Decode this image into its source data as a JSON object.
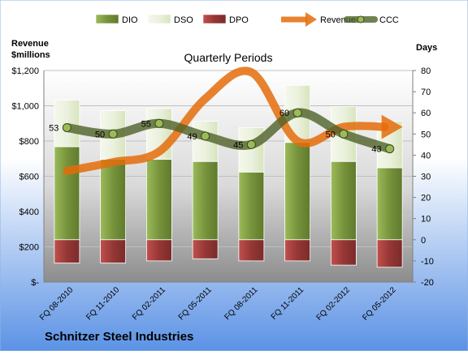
{
  "chart_data": {
    "type": "bar",
    "title": "Quarterly Periods",
    "company": "Schnitzer Steel Industries",
    "left_axis_label_line1": "Revenue",
    "left_axis_label_line2": "$millions",
    "right_axis_label": "Days",
    "categories": [
      "FQ 08-2010",
      "FQ 11-2010",
      "FQ 02-2011",
      "FQ 05-2011",
      "FQ 08-2011",
      "FQ 11-2011",
      "FQ 02-2012",
      "FQ 05-2012"
    ],
    "left_ticks": [
      "$-",
      "$200",
      "$400",
      "$600",
      "$800",
      "$1,000",
      "$1,200"
    ],
    "right_ticks": [
      "-20",
      "-10",
      "0",
      "10",
      "20",
      "30",
      "40",
      "50",
      "60",
      "70",
      "80"
    ],
    "ylim_left": [
      0,
      1200
    ],
    "ylim_right": [
      -20,
      80
    ],
    "series": [
      {
        "name": "DIO",
        "axis": "right",
        "values": [
          44,
          38,
          38,
          37,
          32,
          46,
          37,
          34
        ]
      },
      {
        "name": "DSO",
        "axis": "right",
        "values": [
          22,
          23,
          24,
          19,
          21,
          27,
          26,
          22
        ]
      },
      {
        "name": "DPO",
        "axis": "right",
        "values": [
          -11,
          -11,
          -10,
          -9,
          -10,
          -10,
          -12,
          -13
        ]
      },
      {
        "name": "Revenue",
        "axis": "left",
        "values": [
          630,
          680,
          740,
          1040,
          1190,
          800,
          880,
          880
        ]
      },
      {
        "name": "CCC",
        "axis": "right",
        "values": [
          53,
          50,
          55,
          49,
          45,
          60,
          50,
          43
        ]
      }
    ],
    "ccc_labels": [
      "53",
      "50",
      "55",
      "49",
      "45",
      "60",
      "50",
      "43"
    ],
    "legend": {
      "position": "top",
      "entries": [
        "DIO",
        "DSO",
        "DPO",
        "Revenue",
        "CCC"
      ]
    },
    "grid": true,
    "colors": {
      "dio": "#77933c",
      "dio_light": "#9bbb59",
      "dso": "#ebf1de",
      "dpo": "#953735",
      "revenue": "#e46c0a",
      "ccc": "#4f6228",
      "background_top": "#ffffff",
      "background_bottom": "#5b92e5",
      "plot_top": "#ffffff",
      "plot_bottom": "#9a9a9a"
    }
  }
}
